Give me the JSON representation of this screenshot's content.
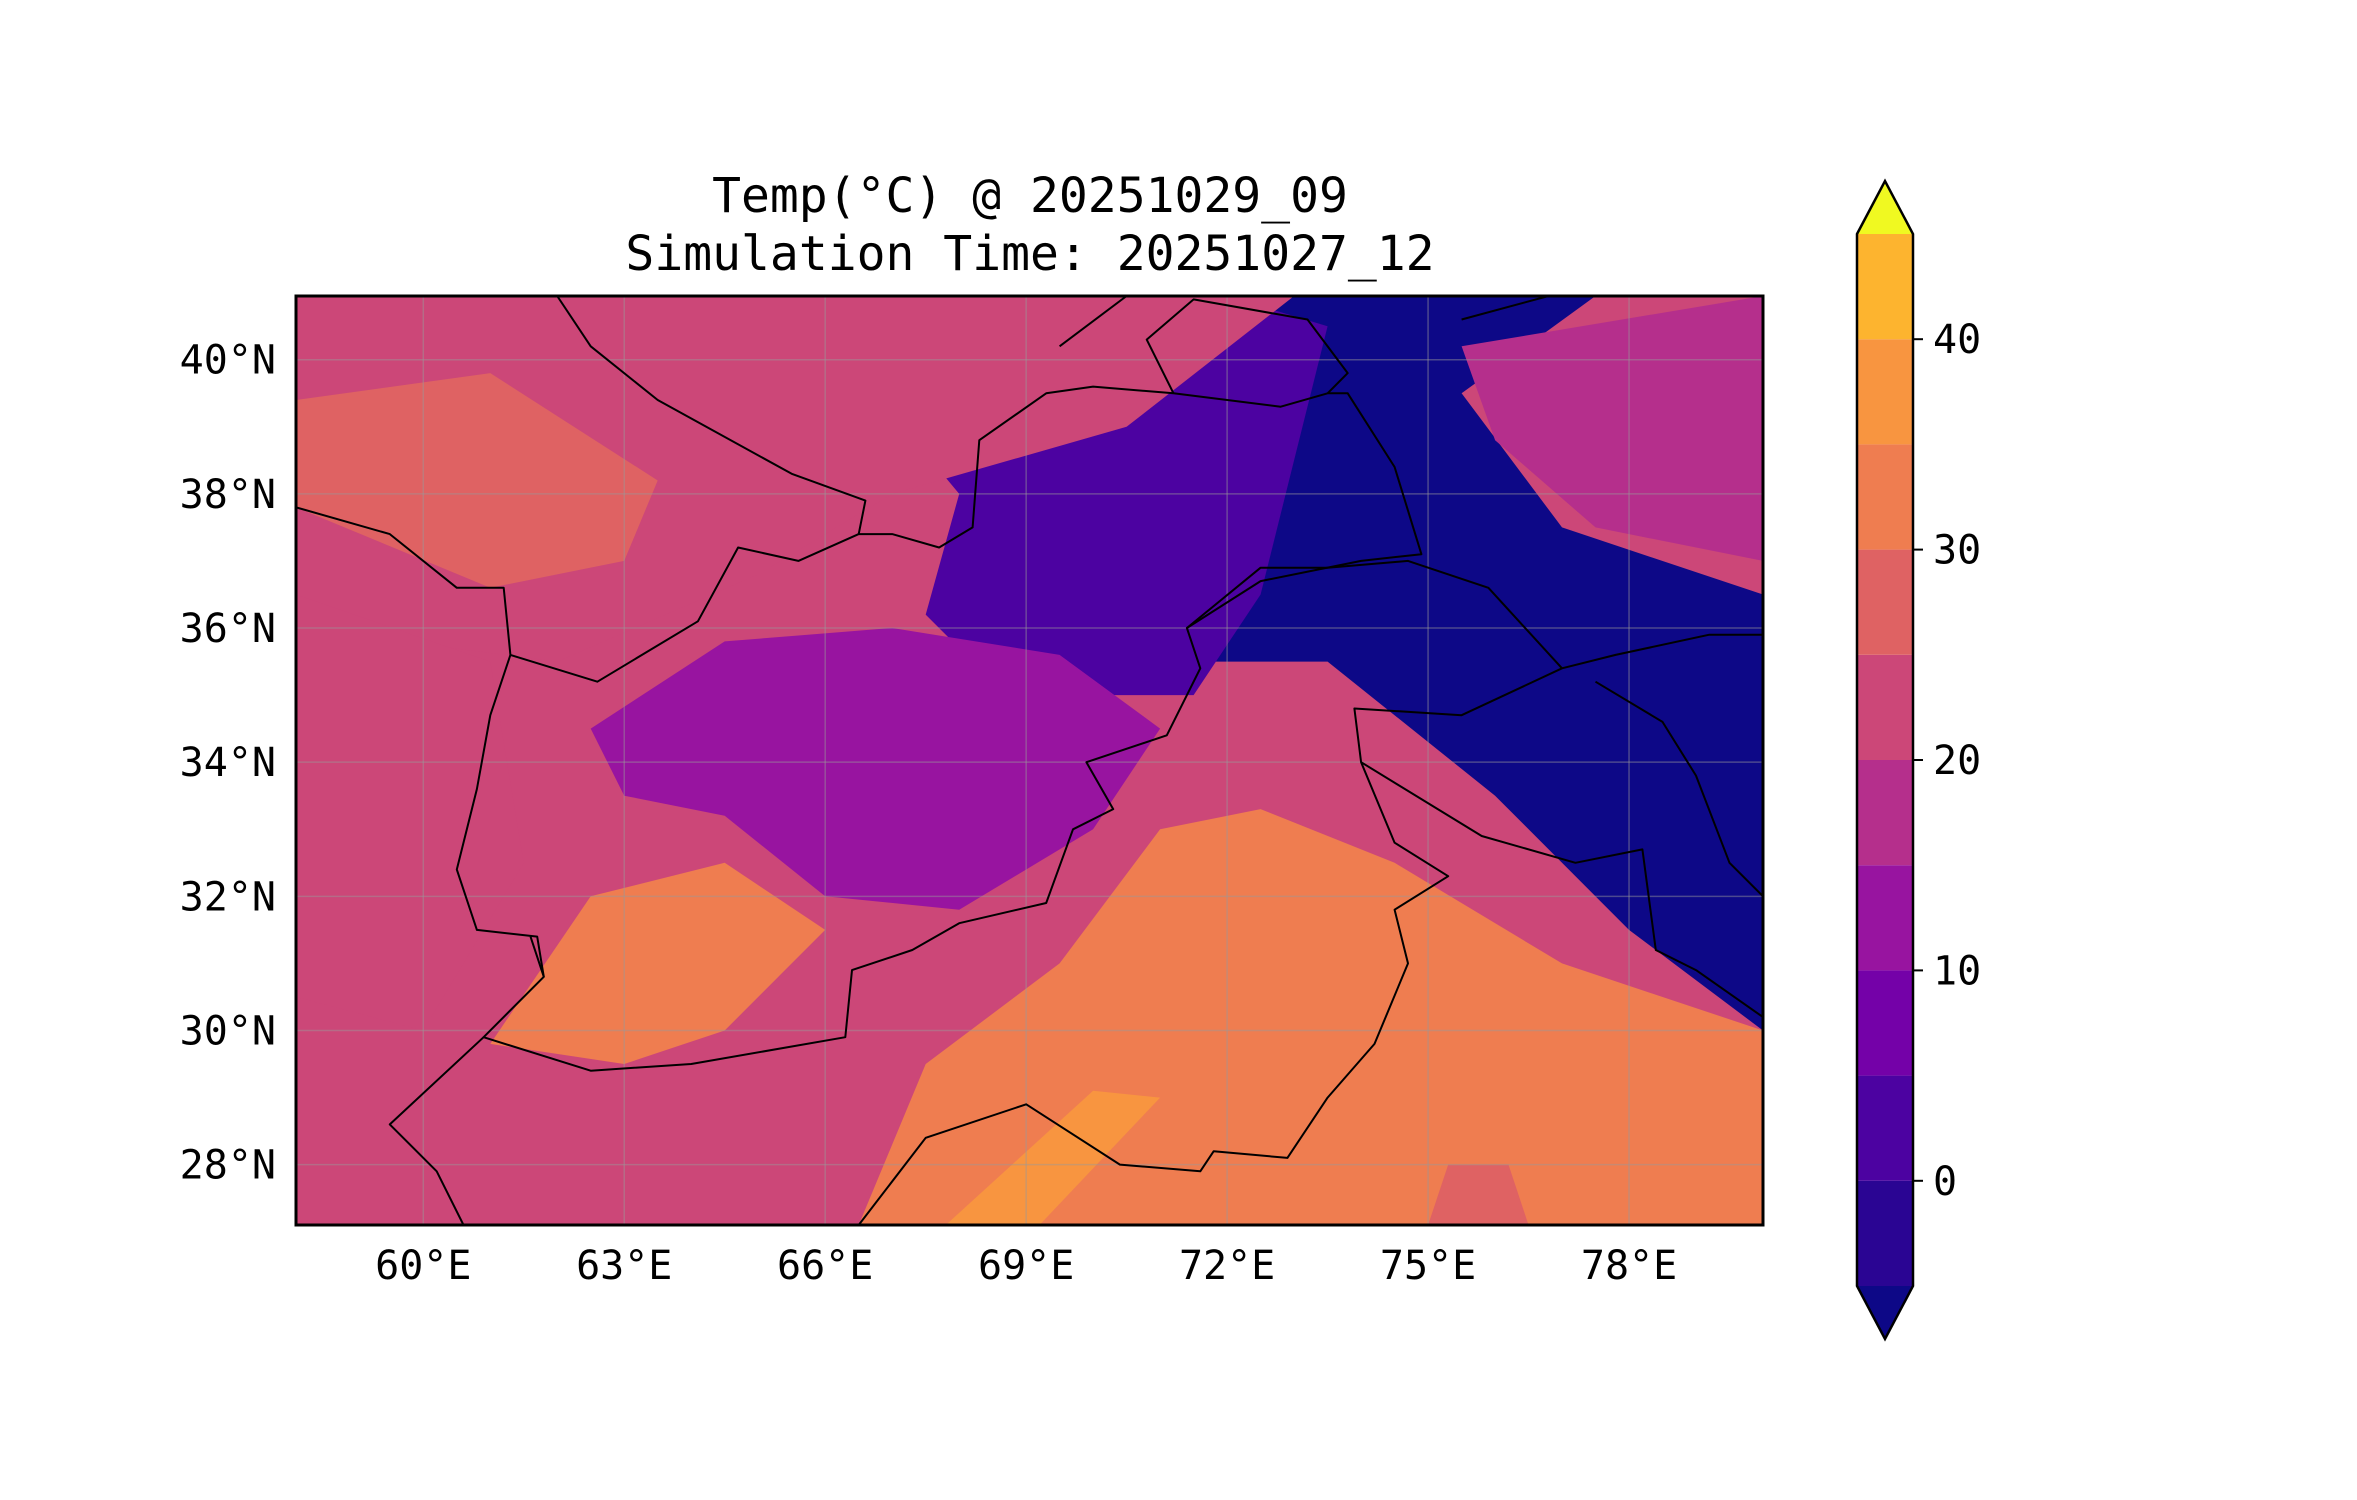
{
  "title": {
    "line1": "Temp(°C) @ 20251029_09",
    "line2": "Simulation Time: 20251027_12"
  },
  "map": {
    "lon_range": [
      58.1,
      80.0
    ],
    "lat_range": [
      27.1,
      40.95
    ],
    "x_ticks": [
      {
        "value": 60,
        "label": "60°E"
      },
      {
        "value": 63,
        "label": "63°E"
      },
      {
        "value": 66,
        "label": "66°E"
      },
      {
        "value": 69,
        "label": "69°E"
      },
      {
        "value": 72,
        "label": "72°E"
      },
      {
        "value": 75,
        "label": "75°E"
      },
      {
        "value": 78,
        "label": "78°E"
      }
    ],
    "y_ticks": [
      {
        "value": 28,
        "label": "28°N"
      },
      {
        "value": 30,
        "label": "30°N"
      },
      {
        "value": 32,
        "label": "32°N"
      },
      {
        "value": 34,
        "label": "34°N"
      },
      {
        "value": 36,
        "label": "36°N"
      },
      {
        "value": 38,
        "label": "38°N"
      },
      {
        "value": 40,
        "label": "40°N"
      }
    ],
    "gridlines": true
  },
  "colorbar": {
    "levels": [
      -5,
      0,
      5,
      10,
      15,
      20,
      25,
      30,
      35,
      40,
      45
    ],
    "colors": [
      "#2a0593",
      "#4c02a1",
      "#7401a8",
      "#9814a0",
      "#b52f8c",
      "#cc4778",
      "#df6263",
      "#ef7d50",
      "#f89540",
      "#fdb42f",
      "#f3e22a"
    ],
    "under_color": "#0d0887",
    "over_color": "#f0f921",
    "extend": "both",
    "ticks": [
      {
        "value": 0,
        "label": "0"
      },
      {
        "value": 10,
        "label": "10"
      },
      {
        "value": 20,
        "label": "20"
      },
      {
        "value": 30,
        "label": "30"
      },
      {
        "value": 40,
        "label": "40"
      }
    ]
  },
  "chart_data": {
    "type": "heatmap",
    "variable": "Temp(°C)",
    "regions": [
      {
        "id": "himalaya-karakoram",
        "value": -6,
        "polygon": [
          [
            70.5,
            39.0
          ],
          [
            72.5,
            40.95
          ],
          [
            77.5,
            40.95
          ],
          [
            75.5,
            39.5
          ],
          [
            77.0,
            37.5
          ],
          [
            80.0,
            36.5
          ],
          [
            80.0,
            30.0
          ],
          [
            78.0,
            31.5
          ],
          [
            76.0,
            33.5
          ],
          [
            73.5,
            35.5
          ],
          [
            71.5,
            35.5
          ],
          [
            70.0,
            37.0
          ]
        ]
      },
      {
        "id": "hindu-kush-cold",
        "value": 2,
        "polygon": [
          [
            67.0,
            39.2
          ],
          [
            69.5,
            40.4
          ],
          [
            72.0,
            40.95
          ],
          [
            73.5,
            40.5
          ],
          [
            73.0,
            38.5
          ],
          [
            72.5,
            36.5
          ],
          [
            71.5,
            35.0
          ],
          [
            70.0,
            35.0
          ],
          [
            68.5,
            35.2
          ],
          [
            67.5,
            36.2
          ],
          [
            68.0,
            38.0
          ]
        ]
      },
      {
        "id": "afghan-highlands",
        "value": 12,
        "polygon": [
          [
            62.5,
            34.5
          ],
          [
            64.5,
            35.8
          ],
          [
            67.0,
            36.0
          ],
          [
            69.5,
            35.6
          ],
          [
            71.0,
            34.5
          ],
          [
            70.0,
            33.0
          ],
          [
            68.0,
            31.8
          ],
          [
            66.0,
            32.0
          ],
          [
            64.5,
            33.2
          ],
          [
            63.0,
            33.5
          ]
        ]
      },
      {
        "id": "tarim-plateau",
        "value": 17,
        "polygon": [
          [
            75.5,
            40.2
          ],
          [
            80.0,
            40.95
          ],
          [
            80.0,
            37.0
          ],
          [
            77.5,
            37.5
          ],
          [
            76.0,
            38.8
          ]
        ]
      },
      {
        "id": "north-basin",
        "value": 22,
        "polygon": [
          [
            58.1,
            40.95
          ],
          [
            73.0,
            40.95
          ],
          [
            70.5,
            39.0
          ],
          [
            67.0,
            38.0
          ],
          [
            65.0,
            36.8
          ],
          [
            62.0,
            35.5
          ],
          [
            58.1,
            36.0
          ]
        ]
      },
      {
        "id": "iran-plateau-west",
        "value": 21,
        "polygon": [
          [
            58.1,
            36.5
          ],
          [
            61.0,
            35.5
          ],
          [
            61.5,
            32.5
          ],
          [
            60.0,
            30.0
          ],
          [
            58.1,
            30.5
          ]
        ]
      },
      {
        "id": "turkmen-desert",
        "value": 26,
        "polygon": [
          [
            58.1,
            39.4
          ],
          [
            61.0,
            39.8
          ],
          [
            63.5,
            38.2
          ],
          [
            63.0,
            37.0
          ],
          [
            61.0,
            36.6
          ],
          [
            58.1,
            37.8
          ]
        ]
      },
      {
        "id": "punjab-sindh-plains",
        "value": 32,
        "polygon": [
          [
            66.5,
            27.1
          ],
          [
            80.0,
            27.1
          ],
          [
            80.0,
            30.0
          ],
          [
            77.0,
            31.0
          ],
          [
            74.5,
            32.5
          ],
          [
            72.5,
            33.3
          ],
          [
            71.0,
            33.0
          ],
          [
            69.5,
            31.0
          ],
          [
            67.5,
            29.5
          ]
        ]
      },
      {
        "id": "sistan-helmand",
        "value": 31,
        "polygon": [
          [
            61.0,
            29.8
          ],
          [
            63.0,
            29.5
          ],
          [
            64.5,
            30.0
          ],
          [
            66.0,
            31.5
          ],
          [
            64.5,
            32.5
          ],
          [
            62.5,
            32.0
          ]
        ]
      },
      {
        "id": "sindh-hot",
        "value": 37,
        "polygon": [
          [
            67.8,
            27.1
          ],
          [
            69.2,
            27.1
          ],
          [
            71.0,
            29.0
          ],
          [
            70.0,
            29.1
          ]
        ]
      },
      {
        "id": "rajasthan-patch",
        "value": 27,
        "polygon": [
          [
            75.0,
            27.1
          ],
          [
            76.5,
            27.1
          ],
          [
            76.2,
            28.0
          ],
          [
            75.3,
            28.0
          ]
        ]
      }
    ],
    "base_value": 23
  },
  "boundaries": {
    "description_free": true,
    "lines": [
      [
        [
          58.1,
          37.8
        ],
        [
          59.5,
          37.4
        ],
        [
          60.5,
          36.6
        ],
        [
          61.2,
          36.6
        ],
        [
          61.3,
          35.6
        ],
        [
          61.0,
          34.7
        ],
        [
          60.8,
          33.6
        ],
        [
          60.5,
          32.4
        ],
        [
          60.8,
          31.5
        ],
        [
          61.7,
          31.4
        ],
        [
          61.8,
          30.8
        ],
        [
          60.9,
          29.9
        ],
        [
          62.5,
          29.4
        ],
        [
          64.0,
          29.5
        ],
        [
          66.3,
          29.9
        ],
        [
          66.4,
          30.9
        ],
        [
          67.3,
          31.2
        ],
        [
          68.0,
          31.6
        ],
        [
          69.3,
          31.9
        ],
        [
          69.7,
          33.0
        ],
        [
          70.3,
          33.3
        ],
        [
          69.9,
          34.0
        ],
        [
          71.1,
          34.4
        ],
        [
          71.6,
          35.4
        ],
        [
          71.4,
          36.0
        ],
        [
          72.5,
          36.7
        ],
        [
          74.0,
          37.0
        ],
        [
          74.9,
          37.1
        ],
        [
          74.5,
          38.4
        ],
        [
          73.8,
          39.5
        ],
        [
          73.5,
          39.5
        ],
        [
          72.8,
          39.3
        ],
        [
          71.2,
          39.5
        ],
        [
          70.0,
          39.6
        ],
        [
          69.3,
          39.5
        ],
        [
          68.3,
          38.8
        ],
        [
          68.2,
          37.5
        ],
        [
          67.7,
          37.2
        ],
        [
          67.0,
          37.4
        ],
        [
          66.5,
          37.4
        ],
        [
          65.6,
          37.0
        ],
        [
          64.7,
          37.2
        ],
        [
          64.1,
          36.1
        ],
        [
          62.6,
          35.2
        ],
        [
          61.3,
          35.6
        ]
      ],
      [
        [
          60.9,
          29.9
        ],
        [
          59.5,
          28.6
        ],
        [
          60.2,
          27.9
        ],
        [
          60.6,
          27.1
        ]
      ],
      [
        [
          61.8,
          30.8
        ],
        [
          61.6,
          31.4
        ]
      ],
      [
        [
          62.0,
          40.95
        ],
        [
          62.5,
          40.2
        ],
        [
          63.5,
          39.4
        ],
        [
          65.5,
          38.3
        ],
        [
          66.6,
          37.9
        ],
        [
          66.5,
          37.4
        ]
      ],
      [
        [
          66.5,
          27.1
        ],
        [
          67.5,
          28.4
        ],
        [
          69.0,
          28.9
        ],
        [
          70.4,
          28.0
        ],
        [
          71.6,
          27.9
        ],
        [
          71.8,
          28.2
        ],
        [
          72.9,
          28.1
        ],
        [
          73.5,
          29.0
        ],
        [
          74.2,
          29.8
        ],
        [
          74.7,
          31.0
        ],
        [
          74.5,
          31.8
        ],
        [
          75.3,
          32.3
        ],
        [
          74.5,
          32.8
        ],
        [
          74.0,
          34.0
        ],
        [
          73.9,
          34.8
        ],
        [
          75.5,
          34.7
        ],
        [
          77.0,
          35.4
        ],
        [
          77.8,
          35.6
        ],
        [
          79.2,
          35.9
        ],
        [
          80.0,
          35.9
        ]
      ],
      [
        [
          74.0,
          34.0
        ],
        [
          75.8,
          32.9
        ],
        [
          77.2,
          32.5
        ],
        [
          78.2,
          32.7
        ],
        [
          78.4,
          31.2
        ],
        [
          79.0,
          30.9
        ],
        [
          80.0,
          30.2
        ]
      ],
      [
        [
          71.4,
          36.0
        ],
        [
          72.5,
          36.9
        ],
        [
          73.5,
          36.9
        ],
        [
          74.7,
          37.0
        ],
        [
          75.9,
          36.6
        ],
        [
          77.0,
          35.4
        ]
      ],
      [
        [
          71.2,
          39.5
        ],
        [
          70.8,
          40.3
        ],
        [
          71.5,
          40.9
        ],
        [
          73.2,
          40.6
        ],
        [
          73.8,
          39.8
        ],
        [
          73.5,
          39.5
        ]
      ],
      [
        [
          69.5,
          40.2
        ],
        [
          70.5,
          40.95
        ]
      ],
      [
        [
          75.5,
          40.6
        ],
        [
          76.8,
          40.95
        ]
      ],
      [
        [
          77.5,
          35.2
        ],
        [
          78.5,
          34.6
        ],
        [
          79.0,
          33.8
        ],
        [
          79.5,
          32.5
        ],
        [
          80.0,
          32.0
        ]
      ]
    ]
  }
}
